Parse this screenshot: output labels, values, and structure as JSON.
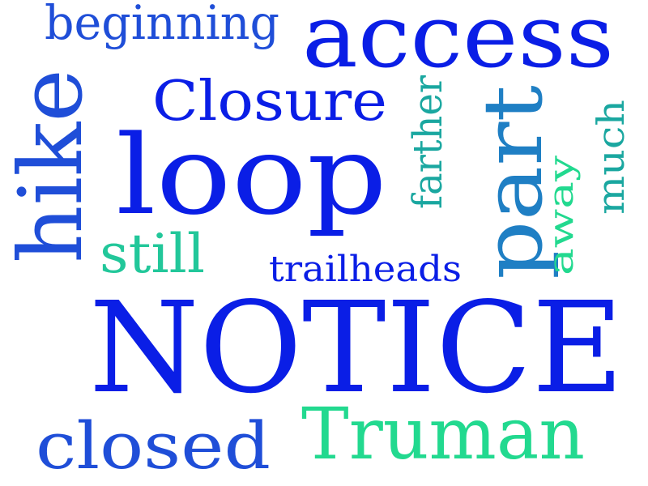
{
  "colors": {
    "background": "#ffffff",
    "royal_blue": "#0a1ee6",
    "medium_blue": "#1f4ed8",
    "steel_blue": "#1f7fc4",
    "teal": "#1aa7a0",
    "mint_green": "#22d98f"
  },
  "words": [
    {
      "id": "notice",
      "text": "NOTICE",
      "color": "#0a1ee6",
      "orientation": "horizontal"
    },
    {
      "id": "loop",
      "text": "loop",
      "color": "#0a1ee6",
      "orientation": "horizontal"
    },
    {
      "id": "access",
      "text": "access",
      "color": "#0a1ee6",
      "orientation": "horizontal"
    },
    {
      "id": "hike",
      "text": "hike",
      "color": "#1f4ed8",
      "orientation": "vertical"
    },
    {
      "id": "part",
      "text": "part",
      "color": "#1f7fc4",
      "orientation": "vertical"
    },
    {
      "id": "closed",
      "text": "closed",
      "color": "#1f4ed8",
      "orientation": "horizontal"
    },
    {
      "id": "truman",
      "text": "Truman",
      "color": "#22d98f",
      "orientation": "horizontal"
    },
    {
      "id": "closure",
      "text": "Closure",
      "color": "#0a1ee6",
      "orientation": "horizontal"
    },
    {
      "id": "beginning",
      "text": "beginning",
      "color": "#1f4ed8",
      "orientation": "horizontal"
    },
    {
      "id": "still",
      "text": "still",
      "color": "#22c79a",
      "orientation": "horizontal"
    },
    {
      "id": "trailheads",
      "text": "trailheads",
      "color": "#0a1ee6",
      "orientation": "horizontal"
    },
    {
      "id": "farther",
      "text": "farther",
      "color": "#1aa7a0",
      "orientation": "vertical"
    },
    {
      "id": "away",
      "text": "away",
      "color": "#22d98f",
      "orientation": "vertical"
    },
    {
      "id": "much",
      "text": "much",
      "color": "#1aa7a0",
      "orientation": "vertical"
    }
  ]
}
